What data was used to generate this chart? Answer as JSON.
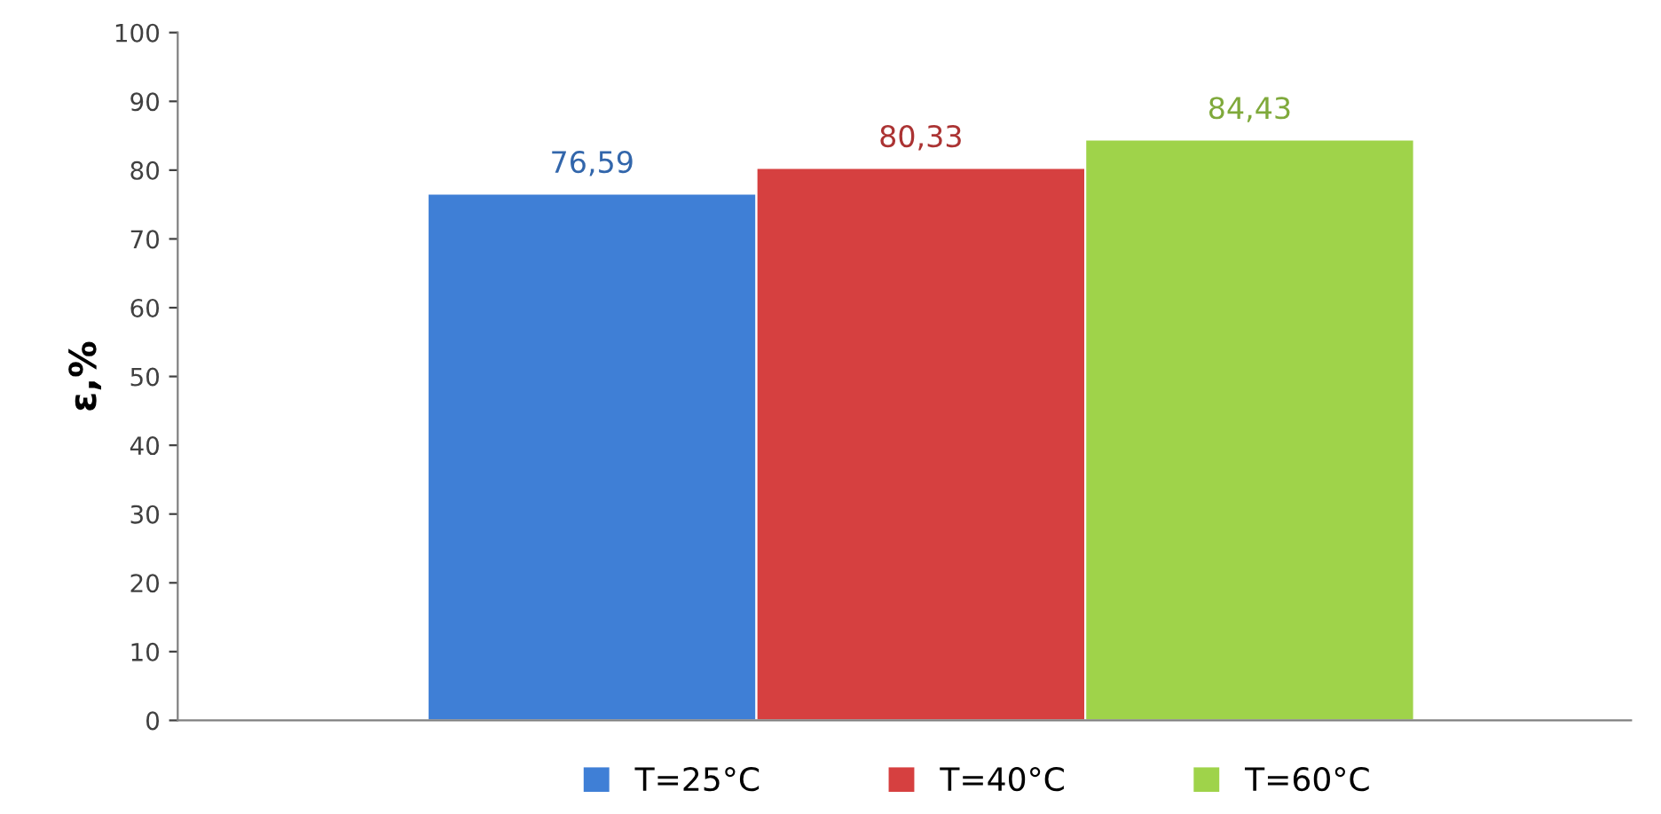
{
  "chart_data": {
    "type": "bar",
    "ylabel": "ε,%",
    "categories": [
      null
    ],
    "series": [
      {
        "name": "T=25°C",
        "color": "#3f7fd6",
        "values": [
          76.59
        ],
        "value_labels": [
          "76,59"
        ]
      },
      {
        "name": "T=40°C",
        "color": "#d64040",
        "values": [
          80.33
        ],
        "value_labels": [
          "80,33"
        ]
      },
      {
        "name": "T=60°C",
        "color": "#9fd34a",
        "values": [
          84.43
        ],
        "value_labels": [
          "84,43"
        ]
      }
    ],
    "ylim": [
      0,
      100
    ],
    "yticks": [
      0,
      10,
      20,
      30,
      40,
      50,
      60,
      70,
      80,
      90,
      100
    ],
    "grid": false,
    "legend": "bottom"
  }
}
